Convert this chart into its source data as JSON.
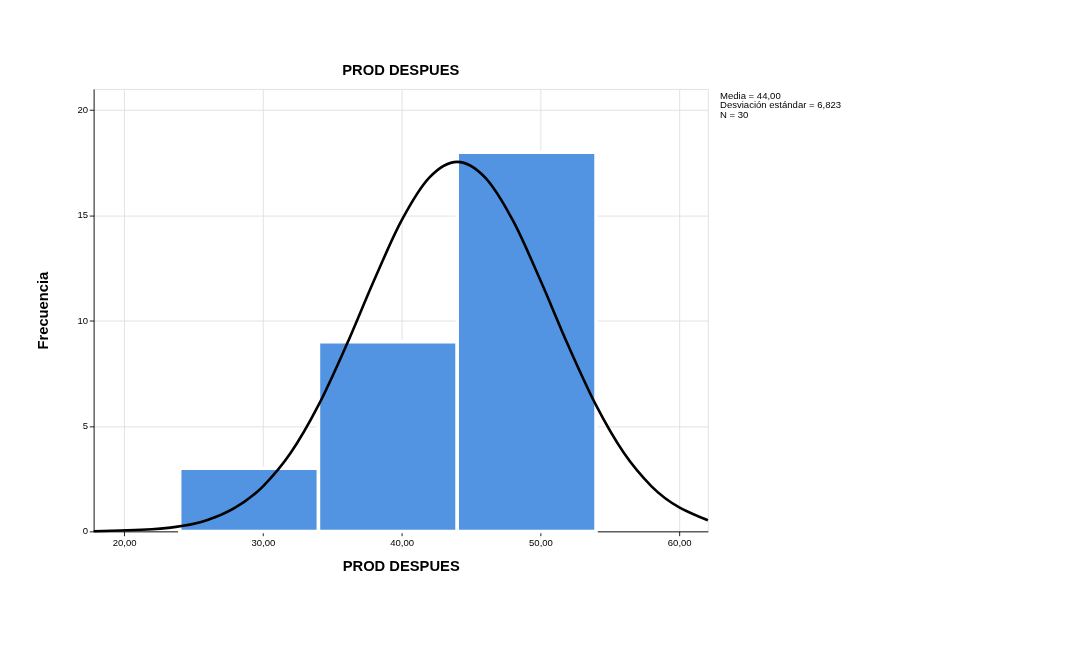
{
  "chart_data": {
    "type": "histogram",
    "title": "PROD DESPUES",
    "xlabel": "PROD DESPUES",
    "ylabel": "Frecuencia",
    "bins": [
      24,
      34,
      44,
      54
    ],
    "values": [
      3,
      9,
      18
    ],
    "color": "#5294e2",
    "series": [
      {
        "type": "line",
        "color": "#000000",
        "x": [
          17.8,
          22,
          26,
          30,
          32,
          34,
          36,
          38,
          40,
          42,
          44,
          46,
          48,
          50,
          52,
          54,
          56,
          58,
          62.06
        ],
        "values": [
          0.01,
          0.1,
          0.54,
          2.14,
          3.73,
          5.99,
          8.82,
          11.91,
          14.77,
          16.8,
          17.54,
          16.8,
          14.77,
          11.91,
          8.82,
          5.99,
          3.73,
          2.14,
          0.53
        ]
      }
    ],
    "xlim": [
      17.8,
      62.06
    ],
    "ylim": [
      0,
      21
    ],
    "xticks": [
      {
        "value": 20,
        "label": "20,00"
      },
      {
        "value": 30,
        "label": "30,00"
      },
      {
        "value": 40,
        "label": "40,00"
      },
      {
        "value": 50,
        "label": "50,00"
      },
      {
        "value": 60,
        "label": "60,00"
      }
    ],
    "yticks": [
      0,
      5,
      10,
      15,
      20
    ],
    "grid": true,
    "legend": false,
    "line_style": "solid",
    "marker": "none",
    "annotations": [
      "Media = 44,00",
      "Desviación estándar = 6,823",
      "N = 30"
    ]
  }
}
